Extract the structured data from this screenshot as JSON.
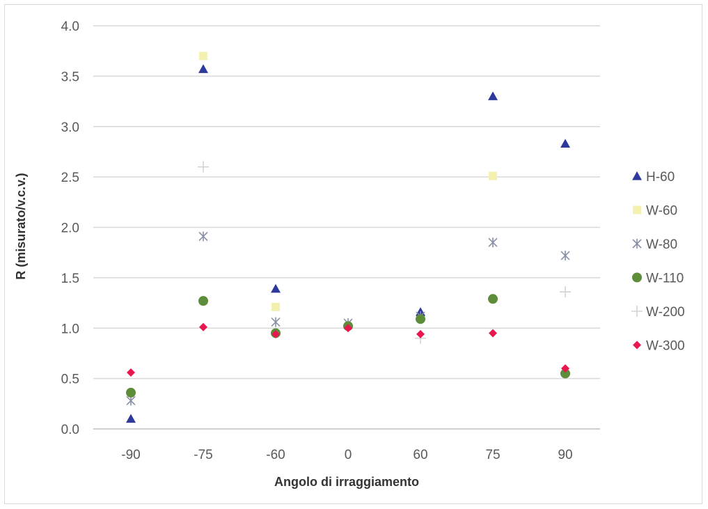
{
  "chart_data": {
    "type": "scatter",
    "title": "",
    "xlabel": "Angolo di irraggiamento",
    "ylabel": "R (misurato/v.c.v.)",
    "categories": [
      "-90",
      "-75",
      "-60",
      "0",
      "60",
      "75",
      "90"
    ],
    "y_ticks": [
      "0.0",
      "0.5",
      "1.0",
      "1.5",
      "2.0",
      "2.5",
      "3.0",
      "3.5",
      "4.0"
    ],
    "ylim": [
      0,
      4
    ],
    "grid": "horizontal",
    "legend_position": "right",
    "series": [
      {
        "name": "H-60",
        "color": "#2e3a9b",
        "marker": "triangle",
        "values": [
          0.1,
          3.57,
          1.39,
          null,
          1.16,
          3.3,
          2.83
        ]
      },
      {
        "name": "W-60",
        "color": "#f3f0b0",
        "marker": "square",
        "values": [
          null,
          3.7,
          1.21,
          null,
          null,
          2.51,
          null
        ]
      },
      {
        "name": "W-80",
        "color": "#8a8fa8",
        "marker": "x",
        "values": [
          0.28,
          1.91,
          1.06,
          1.05,
          1.12,
          1.85,
          1.72
        ]
      },
      {
        "name": "W-110",
        "color": "#5e8d3a",
        "marker": "circle",
        "values": [
          0.36,
          1.27,
          0.95,
          1.02,
          1.09,
          1.29,
          0.55
        ]
      },
      {
        "name": "W-200",
        "color": "#d4d4d4",
        "marker": "plus",
        "values": [
          null,
          2.6,
          null,
          null,
          0.9,
          null,
          1.36
        ]
      },
      {
        "name": "W-300",
        "color": "#e8174f",
        "marker": "diamond",
        "values": [
          0.56,
          1.01,
          0.94,
          1.0,
          0.94,
          0.95,
          0.6
        ]
      }
    ]
  }
}
